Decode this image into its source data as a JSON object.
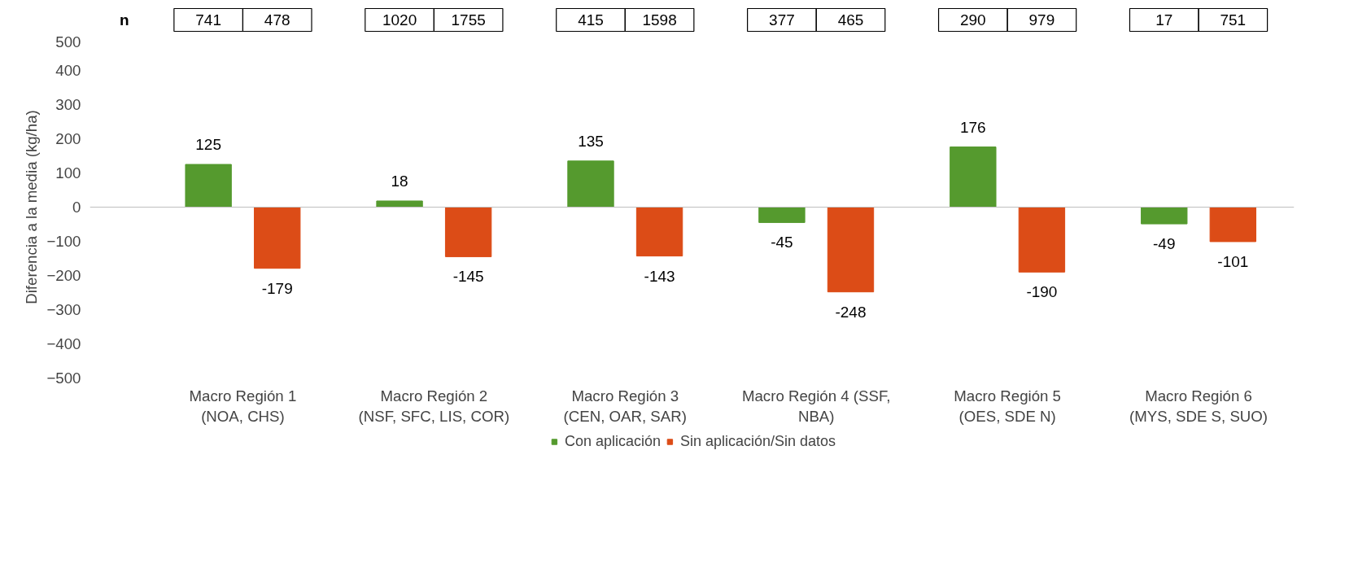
{
  "chart_data": {
    "type": "bar",
    "ylabel": "Diferencia a la media (kg/ha)",
    "categories": [
      "Macro Región 1\n(NOA, CHS)",
      "Macro Región 2\n(NSF, SFC, LIS, COR)",
      "Macro Región 3\n(CEN, OAR, SAR)",
      "Macro Región 4 (SSF,\nNBA)",
      "Macro Región 5\n(OES, SDE N)",
      "Macro Región 6\n(MYS, SDE S, SUO)"
    ],
    "series": [
      {
        "name": "Con aplicación",
        "color": "#559a2e",
        "values": [
          125,
          18,
          135,
          -45,
          176,
          -49
        ]
      },
      {
        "name": "Sin aplicación/Sin datos",
        "color": "#dc4c17",
        "values": [
          -179,
          -145,
          -143,
          -248,
          -190,
          -101
        ]
      }
    ],
    "ylim": [
      -500,
      500
    ],
    "yticks": [
      -500,
      -400,
      -300,
      -200,
      -100,
      0,
      100,
      200,
      300,
      400,
      500
    ],
    "data_labels": true,
    "ref_lines": [
      {
        "axis": "y",
        "value": 0,
        "color": "#bfbfbf"
      }
    ],
    "grid": false,
    "legend": "bottom",
    "annotations": [
      "n",
      "741",
      "478",
      "1020",
      "1755",
      "415",
      "1598",
      "377",
      "465",
      "290",
      "979",
      "17",
      "751"
    ]
  }
}
